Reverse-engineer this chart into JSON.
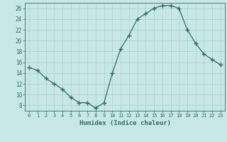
{
  "x": [
    0,
    1,
    2,
    3,
    4,
    5,
    6,
    7,
    8,
    9,
    10,
    11,
    12,
    13,
    14,
    15,
    16,
    17,
    18,
    19,
    20,
    21,
    22,
    23
  ],
  "y": [
    15,
    14.5,
    13,
    12,
    11,
    9.5,
    8.5,
    8.5,
    7.5,
    8.5,
    14,
    18.5,
    21,
    24,
    25,
    26,
    26.5,
    26.5,
    26,
    22,
    19.5,
    17.5,
    16.5,
    15.5
  ],
  "line_color": "#2d6e5e",
  "marker": "+",
  "marker_size": 4,
  "bg_color": "#c8e8e8",
  "grid_color": "#b0cccc",
  "xlabel": "Humidex (Indice chaleur)",
  "xlim": [
    -0.5,
    23.5
  ],
  "ylim": [
    7,
    27
  ],
  "yticks": [
    8,
    10,
    12,
    14,
    16,
    18,
    20,
    22,
    24,
    26
  ],
  "xticks": [
    0,
    1,
    2,
    3,
    4,
    5,
    6,
    7,
    8,
    9,
    10,
    11,
    12,
    13,
    14,
    15,
    16,
    17,
    18,
    19,
    20,
    21,
    22,
    23
  ]
}
